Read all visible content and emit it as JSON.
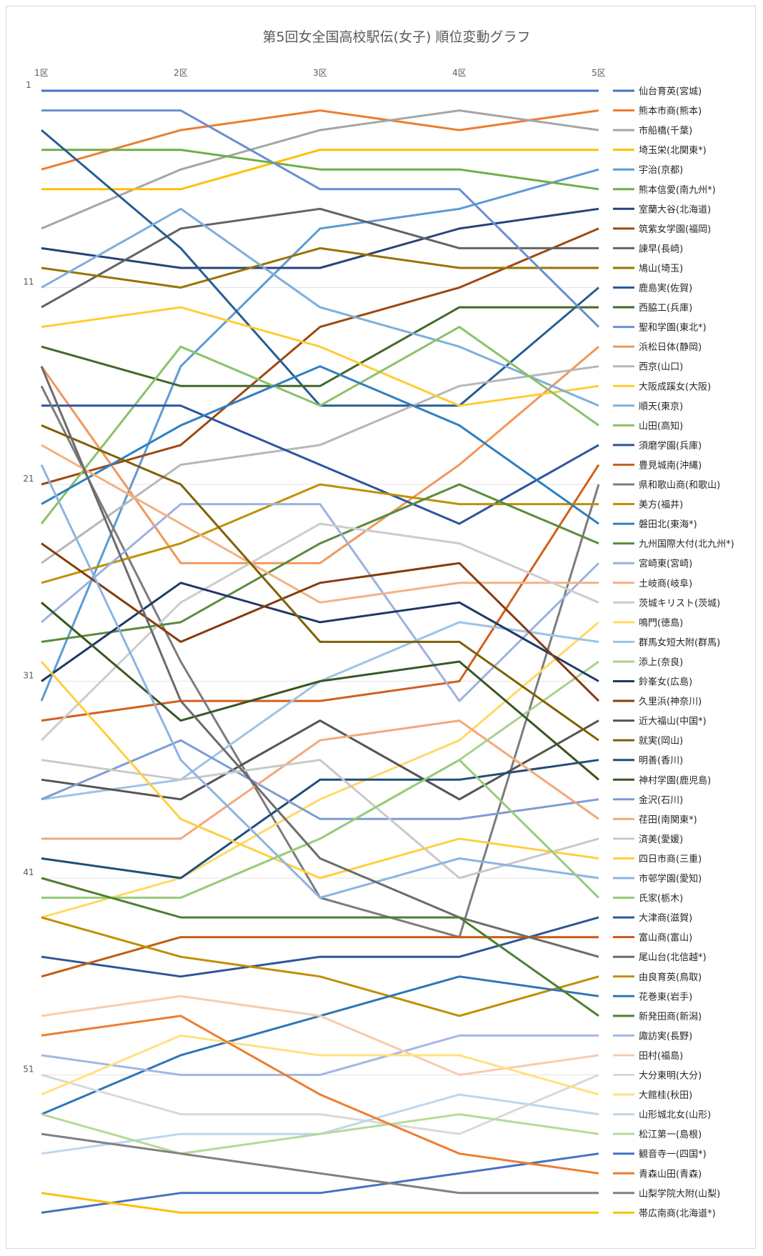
{
  "chart_data": {
    "type": "line",
    "title": "第5回女全国高校駅伝(女子) 順位変動グラフ",
    "categories": [
      "1区",
      "2区",
      "3区",
      "4区",
      "5区"
    ],
    "y_ticks": [
      "1",
      "11",
      "21",
      "31",
      "41",
      "51"
    ],
    "y_reversed": true,
    "ylim": [
      1,
      58
    ],
    "grid": "horizontal",
    "legend_position": "right",
    "series": [
      {
        "name": "仙台育英(宮城)",
        "color": "#4472C4",
        "values": [
          1,
          1,
          1,
          1,
          1
        ]
      },
      {
        "name": "熊本市商(熊本)",
        "color": "#ED7D31",
        "values": [
          5,
          3,
          2,
          3,
          2
        ]
      },
      {
        "name": "市船橋(千葉)",
        "color": "#A5A5A5",
        "values": [
          8,
          5,
          3,
          2,
          3
        ]
      },
      {
        "name": "埼玉栄(北関東*)",
        "color": "#FFC000",
        "values": [
          6,
          6,
          4,
          4,
          4
        ]
      },
      {
        "name": "宇治(京都)",
        "color": "#5B9BD5",
        "values": [
          32,
          15,
          8,
          7,
          5
        ]
      },
      {
        "name": "熊本信愛(南九州*)",
        "color": "#70AD47",
        "values": [
          4,
          4,
          5,
          5,
          6
        ]
      },
      {
        "name": "室蘭大谷(北海道)",
        "color": "#264478",
        "values": [
          9,
          10,
          10,
          8,
          7
        ]
      },
      {
        "name": "筑紫女学園(福岡)",
        "color": "#9E480E",
        "values": [
          21,
          19,
          13,
          11,
          8
        ]
      },
      {
        "name": "諫早(長崎)",
        "color": "#636363",
        "values": [
          12,
          8,
          7,
          9,
          9
        ]
      },
      {
        "name": "鳩山(埼玉)",
        "color": "#997300",
        "values": [
          10,
          11,
          9,
          10,
          10
        ]
      },
      {
        "name": "鹿島実(佐賀)",
        "color": "#255E91",
        "values": [
          3,
          9,
          17,
          17,
          11
        ]
      },
      {
        "name": "西脇工(兵庫)",
        "color": "#43682B",
        "values": [
          14,
          16,
          16,
          12,
          12
        ]
      },
      {
        "name": "聖和学園(東北*)",
        "color": "#698ED0",
        "values": [
          2,
          2,
          6,
          6,
          13
        ]
      },
      {
        "name": "浜松日体(静岡)",
        "color": "#F1975A",
        "values": [
          15,
          25,
          25,
          20,
          14
        ]
      },
      {
        "name": "西京(山口)",
        "color": "#B7B7B7",
        "values": [
          25,
          20,
          19,
          16,
          15
        ]
      },
      {
        "name": "大阪成蹊女(大阪)",
        "color": "#FFCD33",
        "values": [
          13,
          12,
          14,
          17,
          16
        ]
      },
      {
        "name": "順天(東京)",
        "color": "#7CAFDD",
        "values": [
          11,
          7,
          12,
          14,
          17
        ]
      },
      {
        "name": "山田(高知)",
        "color": "#8CC168",
        "values": [
          23,
          14,
          17,
          13,
          18
        ]
      },
      {
        "name": "須磨学園(兵庫)",
        "color": "#2E54A0",
        "values": [
          17,
          17,
          20,
          23,
          19
        ]
      },
      {
        "name": "豊見城南(沖縄)",
        "color": "#D35E1E",
        "values": [
          33,
          32,
          32,
          31,
          20
        ]
      },
      {
        "name": "県和歌山商(和歌山)",
        "color": "#7C7C7C",
        "values": [
          16,
          30,
          42,
          44,
          21
        ]
      },
      {
        "name": "美方(福井)",
        "color": "#C09000",
        "values": [
          26,
          24,
          21,
          22,
          22
        ]
      },
      {
        "name": "磐田北(東海*)",
        "color": "#2F7FC0",
        "values": [
          22,
          18,
          15,
          18,
          23
        ]
      },
      {
        "name": "九州国際大付(北九州*)",
        "color": "#5A8B3A",
        "values": [
          29,
          28,
          24,
          21,
          24
        ]
      },
      {
        "name": "宮崎東(宮崎)",
        "color": "#9DB1E1",
        "values": [
          28,
          22,
          22,
          32,
          25
        ]
      },
      {
        "name": "土岐商(岐阜)",
        "color": "#F4B183",
        "values": [
          19,
          23,
          27,
          26,
          26
        ]
      },
      {
        "name": "茨城キリスト(茨城)",
        "color": "#CCCCCC",
        "values": [
          34,
          27,
          23,
          24,
          27
        ]
      },
      {
        "name": "鳴門(徳島)",
        "color": "#FFD966",
        "values": [
          43,
          41,
          37,
          34,
          28
        ]
      },
      {
        "name": "群馬女短大附(群馬)",
        "color": "#9DC3E6",
        "values": [
          37,
          36,
          31,
          28,
          29
        ]
      },
      {
        "name": "添上(奈良)",
        "color": "#A9D18E",
        "values": [
          42,
          42,
          39,
          35,
          30
        ]
      },
      {
        "name": "鈴峯女(広島)",
        "color": "#1F3864",
        "values": [
          31,
          26,
          28,
          27,
          31
        ]
      },
      {
        "name": "久里浜(神奈川)",
        "color": "#843C0C",
        "values": [
          24,
          29,
          26,
          25,
          32
        ]
      },
      {
        "name": "近大福山(中国*)",
        "color": "#545454",
        "values": [
          36,
          37,
          33,
          37,
          33
        ]
      },
      {
        "name": "就実(岡山)",
        "color": "#7F6000",
        "values": [
          18,
          21,
          29,
          29,
          34
        ]
      },
      {
        "name": "明善(香川)",
        "color": "#1F4E79",
        "values": [
          40,
          41,
          36,
          36,
          35
        ]
      },
      {
        "name": "神村学園(鹿児島)",
        "color": "#385723",
        "values": [
          27,
          33,
          31,
          30,
          36
        ]
      },
      {
        "name": "金沢(石川)",
        "color": "#7F9BD5",
        "values": [
          37,
          34,
          38,
          38,
          37
        ]
      },
      {
        "name": "荏田(南関東*)",
        "color": "#F4A77A",
        "values": [
          39,
          39,
          34,
          33,
          38
        ]
      },
      {
        "name": "済美(愛媛)",
        "color": "#C9C9C9",
        "values": [
          35,
          36,
          35,
          41,
          39
        ]
      },
      {
        "name": "四日市商(三重)",
        "color": "#FFCF40",
        "values": [
          30,
          38,
          41,
          39,
          40
        ]
      },
      {
        "name": "市邨学園(愛知)",
        "color": "#8DB4E2",
        "values": [
          20,
          35,
          42,
          40,
          41
        ]
      },
      {
        "name": "氏家(栃木)",
        "color": "#99CC7A",
        "values": [
          42,
          42,
          39,
          35,
          42
        ]
      },
      {
        "name": "大津商(滋賀)",
        "color": "#2F5597",
        "values": [
          45,
          46,
          45,
          45,
          43
        ]
      },
      {
        "name": "富山商(富山)",
        "color": "#C55A11",
        "values": [
          46,
          44,
          44,
          44,
          44
        ]
      },
      {
        "name": "尾山台(北信越*)",
        "color": "#6B6B6B",
        "values": [
          15,
          32,
          40,
          43,
          45
        ]
      },
      {
        "name": "由良育英(鳥取)",
        "color": "#BF8F00",
        "values": [
          43,
          45,
          46,
          48,
          46
        ]
      },
      {
        "name": "花巻東(岩手)",
        "color": "#2E75B6",
        "values": [
          53,
          50,
          48,
          46,
          47
        ]
      },
      {
        "name": "新発田商(新潟)",
        "color": "#4E7F2E",
        "values": [
          41,
          43,
          43,
          43,
          48
        ]
      },
      {
        "name": "諏訪実(長野)",
        "color": "#A4B6E4",
        "values": [
          50,
          51,
          51,
          49,
          49
        ]
      },
      {
        "name": "田村(福島)",
        "color": "#F8CBAD",
        "values": [
          48,
          47,
          48,
          51,
          50
        ]
      },
      {
        "name": "大分東明(大分)",
        "color": "#D9D9D9",
        "values": [
          51,
          53,
          53,
          54,
          51
        ]
      },
      {
        "name": "大館桂(秋田)",
        "color": "#FFE180",
        "values": [
          52,
          49,
          50,
          50,
          52
        ]
      },
      {
        "name": "山形城北女(山形)",
        "color": "#BDD7EE",
        "values": [
          55,
          54,
          54,
          52,
          53
        ]
      },
      {
        "name": "松江第一(島根)",
        "color": "#B4DA9A",
        "values": [
          53,
          55,
          54,
          53,
          54
        ]
      },
      {
        "name": "観音寺一(四国*)",
        "color": "#4472C4",
        "values": [
          58,
          57,
          57,
          56,
          55
        ]
      },
      {
        "name": "青森山田(青森)",
        "color": "#ED7D31",
        "values": [
          49,
          48,
          52,
          55,
          56
        ]
      },
      {
        "name": "山梨学院大附(山梨)",
        "color": "#808080",
        "values": [
          54,
          55,
          56,
          57,
          57
        ]
      },
      {
        "name": "帯広南商(北海道*)",
        "color": "#FFC000",
        "values": [
          57,
          58,
          58,
          58,
          58
        ]
      }
    ]
  }
}
